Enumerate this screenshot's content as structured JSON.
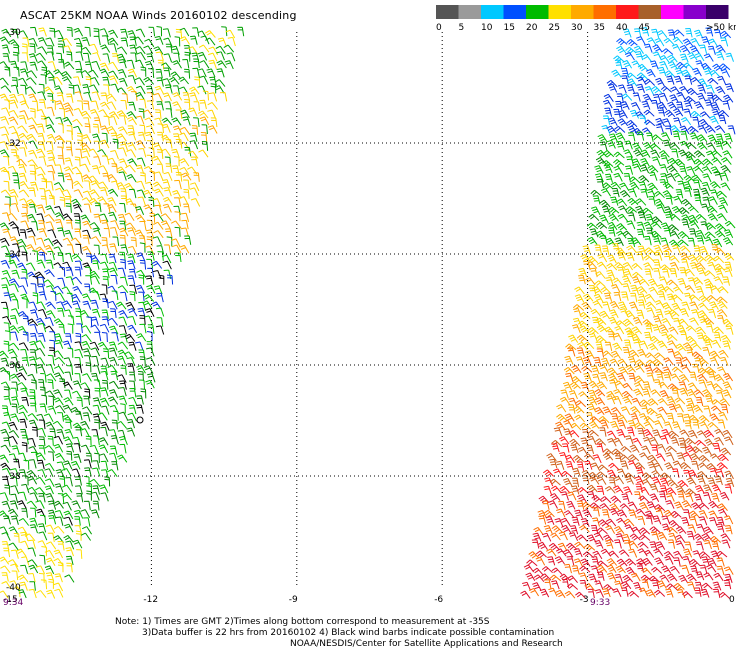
{
  "header": {
    "title": "ASCAT 25KM NOAA Winds 20160102 descending"
  },
  "legend": {
    "bins": [
      {
        "label": "0",
        "color": "#555555"
      },
      {
        "label": "5",
        "color": "#9a9a9a"
      },
      {
        "label": "10",
        "color": "#00c8ff"
      },
      {
        "label": "15",
        "color": "#0050ff"
      },
      {
        "label": "20",
        "color": "#00bb00"
      },
      {
        "label": "25",
        "color": "#ffe000"
      },
      {
        "label": "30",
        "color": "#ffaa00"
      },
      {
        "label": "35",
        "color": "#ff6e00"
      },
      {
        "label": "40",
        "color": "#ff1a1a"
      },
      {
        "label": "45",
        "color": "#a8602a"
      },
      {
        "label": "",
        "color": "#ff00ff"
      },
      {
        "label": "",
        "color": "#8800cc"
      },
      {
        "label": ">50 knots",
        "color": "#3a006a"
      }
    ]
  },
  "axes": {
    "lat_labels": [
      "-30",
      "-32",
      "-34",
      "-36",
      "-38",
      "-40"
    ],
    "lon_labels": [
      "-15",
      "-12",
      "-9",
      "-6",
      "-3",
      "0"
    ],
    "grid": "dotted"
  },
  "times": {
    "left": "9:34",
    "right": "9:33"
  },
  "notes": {
    "line1": "Note: 1) Times are GMT 2)Times along bottom correspond to measurement at -35S",
    "line2": "3)Data buffer is 22 hrs from 20160102 4) Black wind barbs indicate possible contamination",
    "line3": "NOAA/NESDIS/Center for Satellite Applications and Research"
  },
  "swaths": {
    "left": {
      "description_colors": [
        "#00bb00",
        "#ffe000",
        "#0050ff",
        "#000000",
        "#ffaa00"
      ]
    },
    "right": {
      "description_colors": [
        "#00c8ff",
        "#0050ff",
        "#00bb00",
        "#ffe000",
        "#ffaa00",
        "#ff6e00",
        "#ff1a1a"
      ]
    }
  }
}
